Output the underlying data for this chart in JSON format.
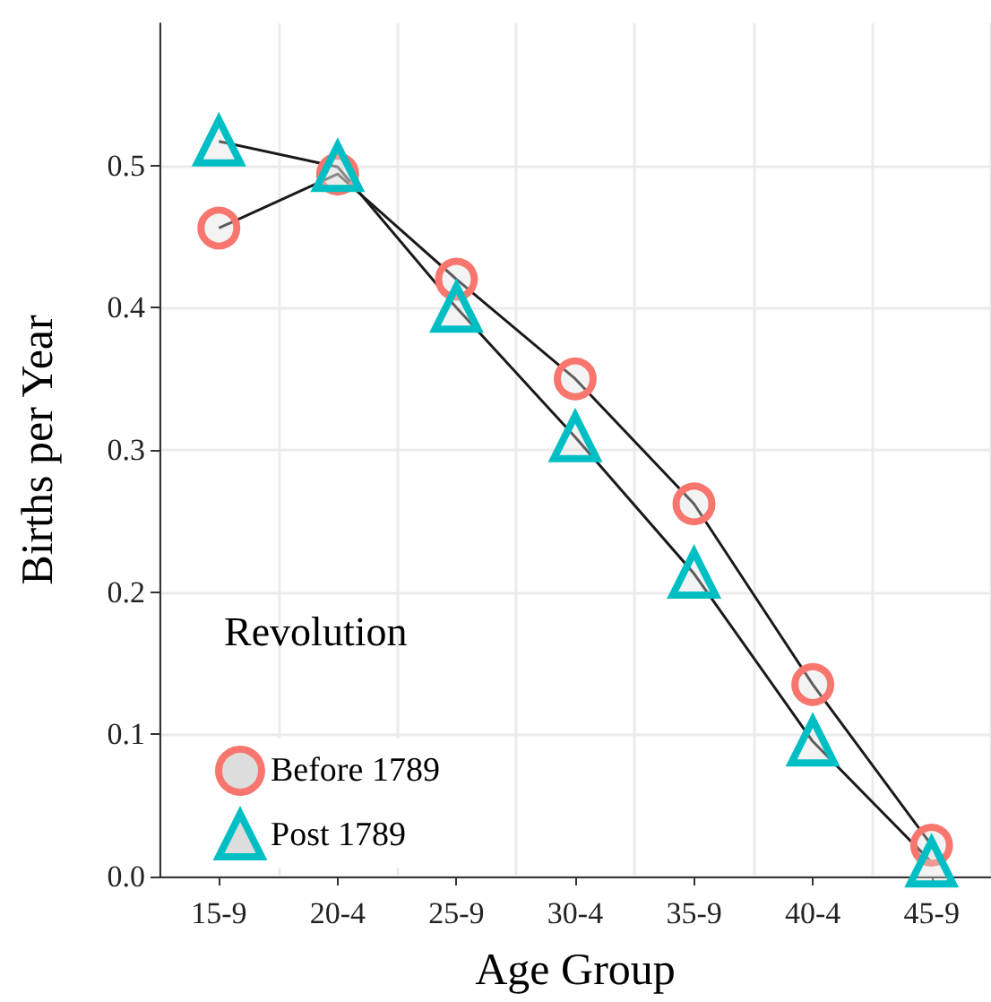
{
  "chart_data": {
    "type": "line",
    "xlabel": "Age Group",
    "ylabel": "Births per Year",
    "legend_title": "Revolution",
    "categories": [
      "15-9",
      "20-4",
      "25-9",
      "30-4",
      "35-9",
      "40-4",
      "45-9"
    ],
    "series": [
      {
        "name": "Before 1789",
        "color": "#f8766d",
        "marker": "circle",
        "values": [
          0.456,
          0.494,
          0.42,
          0.35,
          0.262,
          0.135,
          0.022
        ]
      },
      {
        "name": "Post 1789",
        "color": "#00bfc4",
        "marker": "triangle",
        "values": [
          0.517,
          0.499,
          0.4,
          0.309,
          0.213,
          0.095,
          0.01
        ]
      }
    ],
    "ylim": [
      0,
      0.6
    ],
    "yticks": [
      {
        "value": 0,
        "label": "0.0"
      },
      0.1,
      0.2,
      0.3,
      0.4,
      0.5
    ],
    "grid": true,
    "legend": "bottom left"
  }
}
